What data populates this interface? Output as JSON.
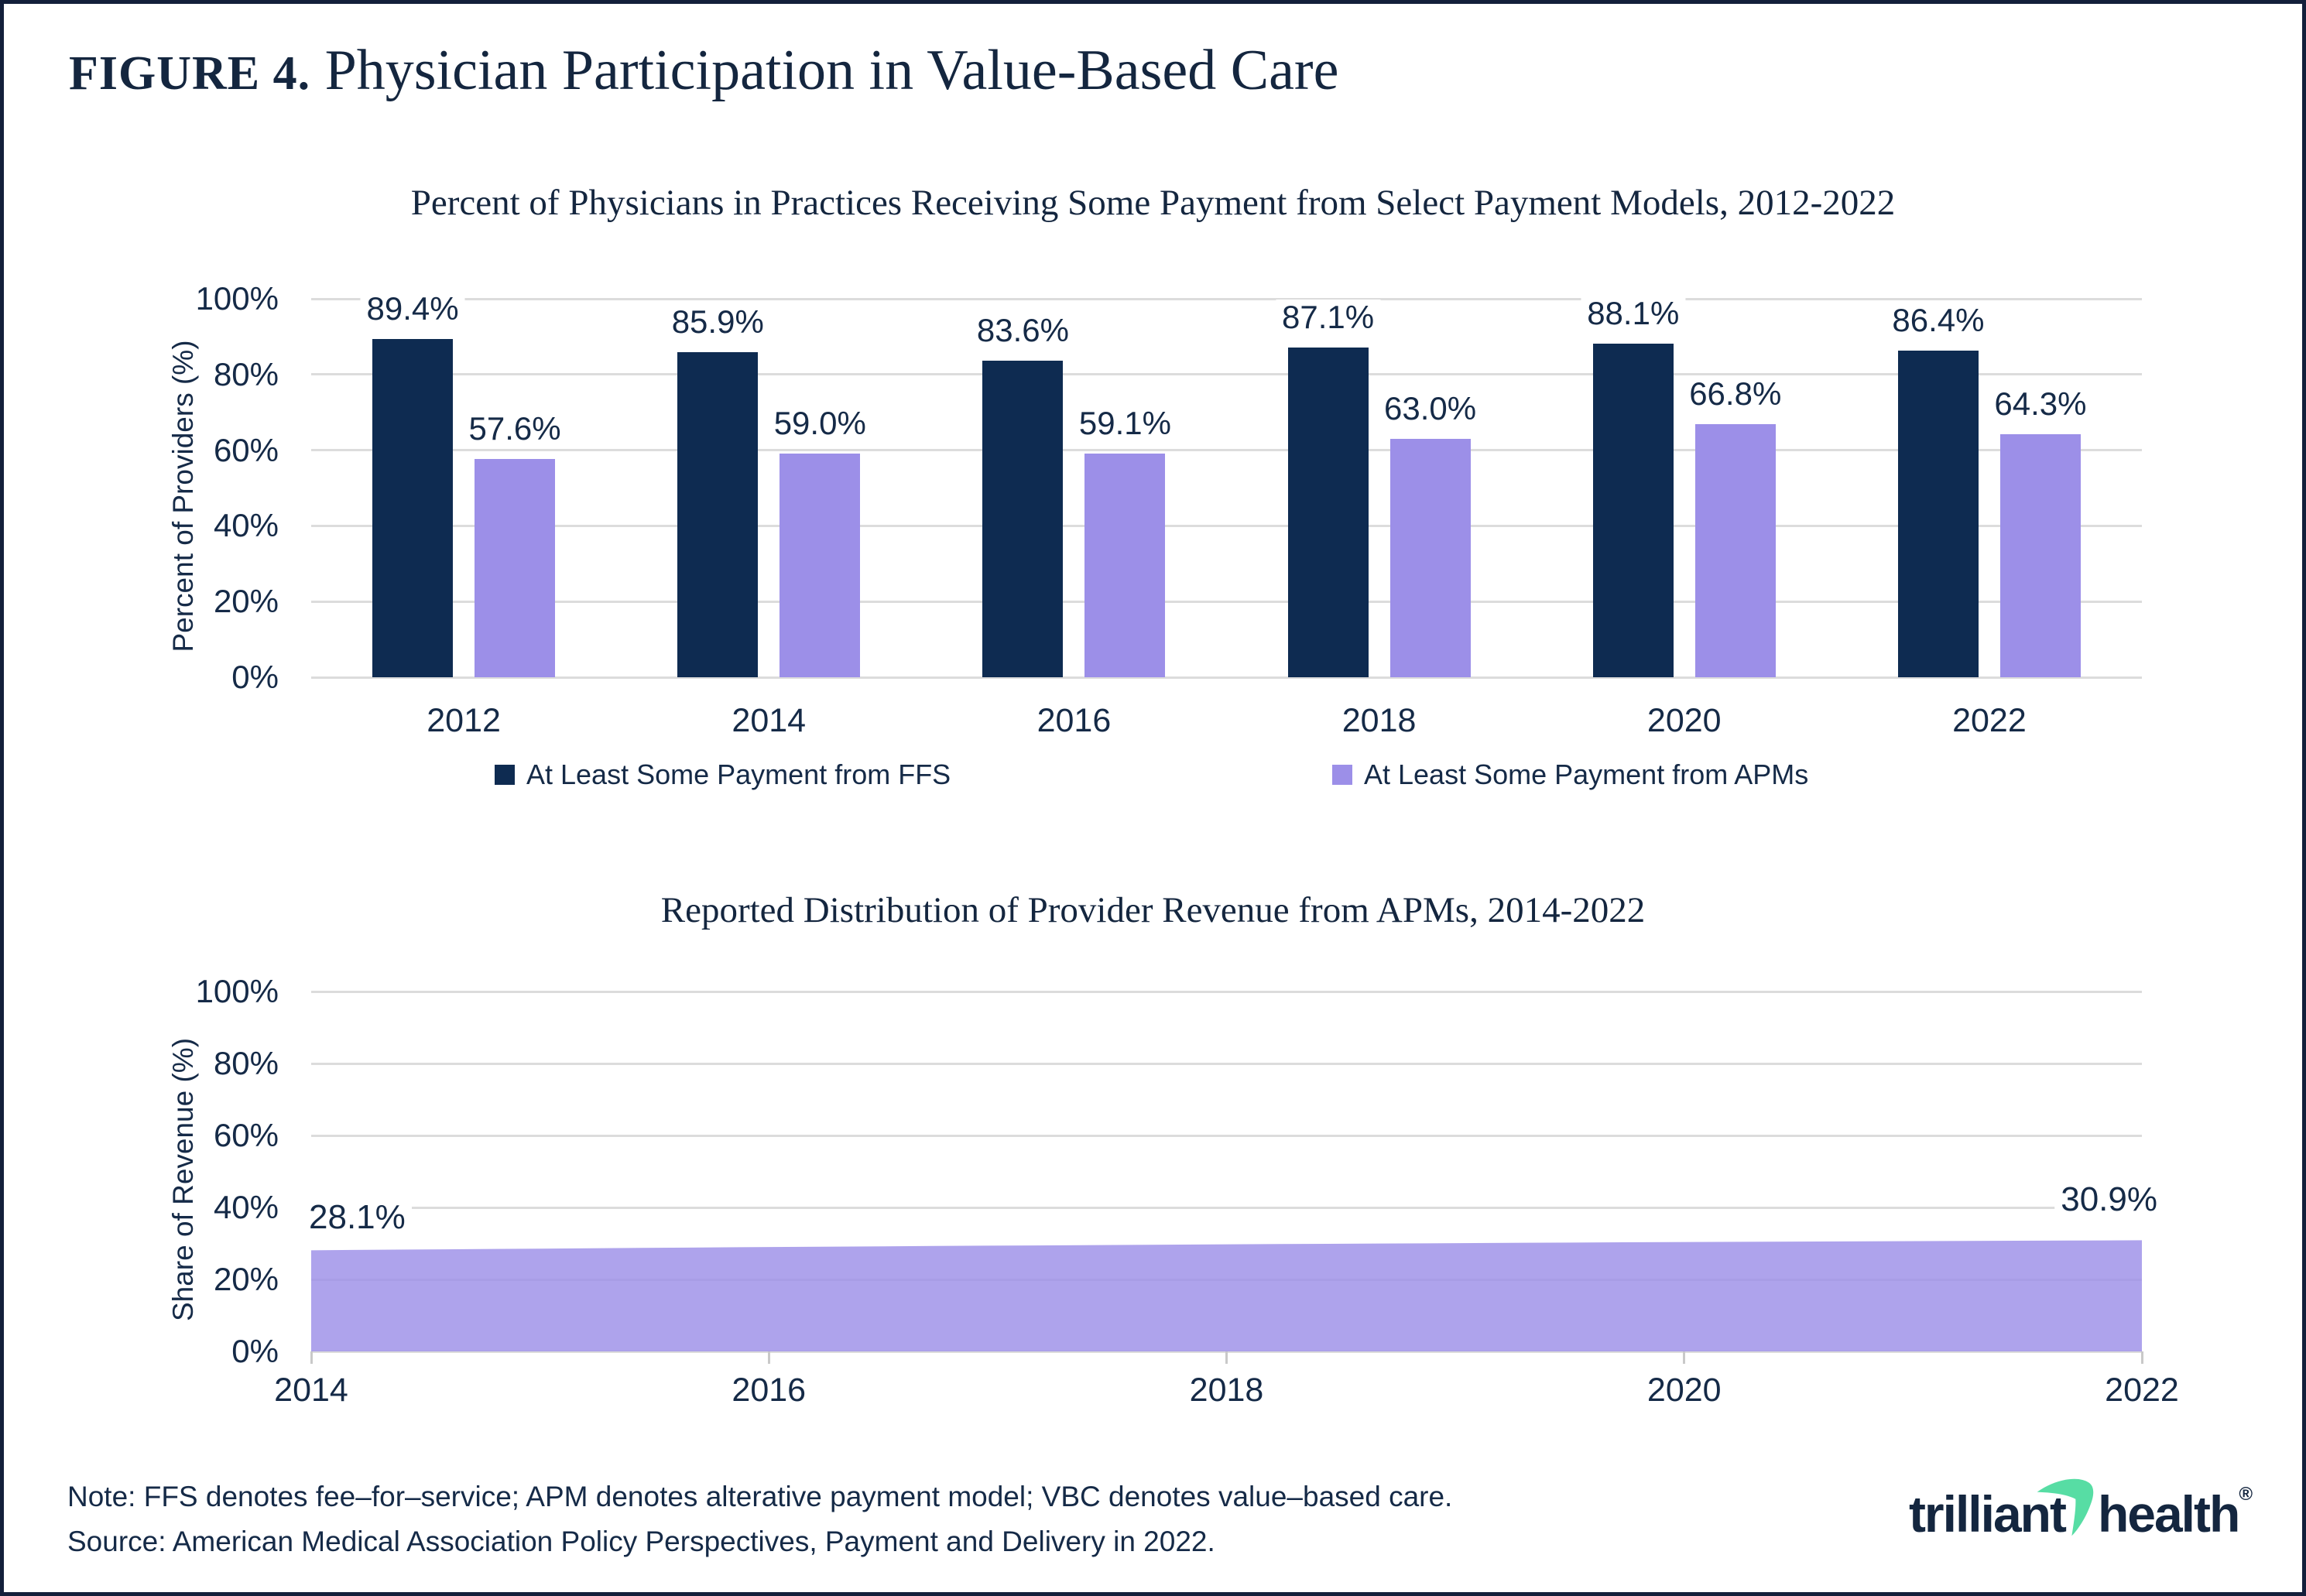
{
  "figure": {
    "label": "FIGURE 4.",
    "title": " Physician Participation in Value-Based Care"
  },
  "chart_data": [
    {
      "type": "bar",
      "title": "Percent of Physicians in Practices Receiving Some Payment from Select Payment Models, 2012-2022",
      "ylabel": "Percent of Providers (%)",
      "ylim": [
        0,
        100
      ],
      "y_tick_labels": [
        "0%",
        "20%",
        "40%",
        "60%",
        "80%",
        "100%"
      ],
      "grid": true,
      "legend_position": "bottom",
      "categories": [
        "2012",
        "2014",
        "2016",
        "2018",
        "2020",
        "2022"
      ],
      "series": [
        {
          "name": "At Least Some Payment from FFS",
          "color": "#0E2B51",
          "values": [
            89.4,
            85.9,
            83.6,
            87.1,
            88.1,
            86.4
          ]
        },
        {
          "name": "At Least Some Payment from APMs",
          "color": "#9C8FE8",
          "values": [
            57.6,
            59.0,
            59.1,
            63.0,
            66.8,
            64.3
          ]
        }
      ]
    },
    {
      "type": "area",
      "title": "Reported Distribution of Provider Revenue from APMs, 2014-2022",
      "ylabel": "Share of Revenue (%)",
      "ylim": [
        0,
        100
      ],
      "y_tick_labels": [
        "0%",
        "20%",
        "40%",
        "60%",
        "80%",
        "100%"
      ],
      "x_tick_labels": [
        "2014",
        "2016",
        "2018",
        "2020",
        "2022"
      ],
      "x": [
        2014,
        2022
      ],
      "values": [
        28.1,
        30.9
      ],
      "point_labels": [
        "28.1%",
        "30.9%"
      ],
      "color": "#9C8FE8",
      "grid": true
    }
  ],
  "footer": {
    "note": "Note: FFS denotes fee–for–service; APM denotes alterative payment model; VBC denotes value–based care.",
    "source": "Source: American Medical Association Policy Perspectives, Payment and Delivery in 2022."
  },
  "logo": {
    "word1": "trilliant",
    "word2": "health",
    "registered": "®",
    "accent_color": "#57DDA4",
    "text_color": "#14263F"
  },
  "colors": {
    "navy": "#0E2B51",
    "purple": "#9C8FE8",
    "gridline": "#DCDCDC",
    "text": "#152A47"
  }
}
